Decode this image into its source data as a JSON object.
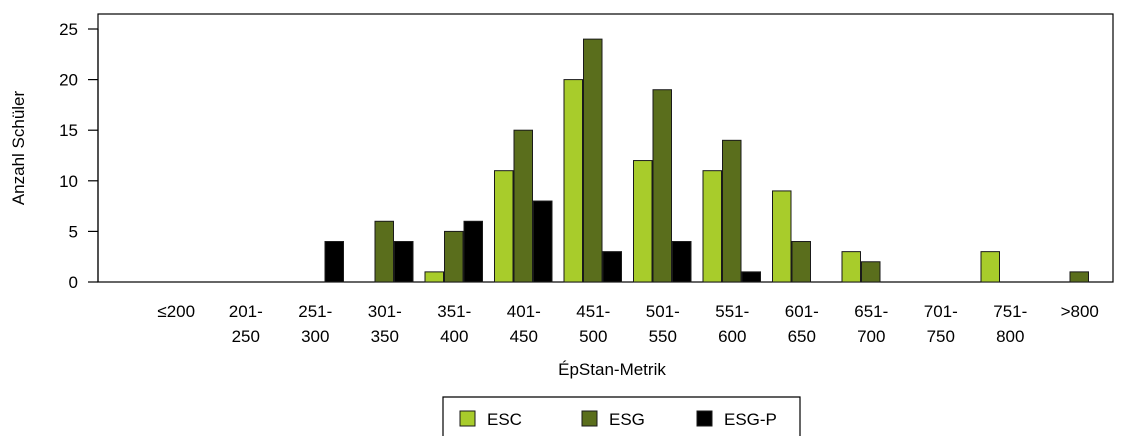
{
  "chart_data": {
    "type": "bar",
    "xlabel": "ÉpStan-Metrik",
    "ylabel": "Anzahl Schüler",
    "ylim": [
      0,
      26
    ],
    "yticks": [
      0,
      5,
      10,
      15,
      20,
      25
    ],
    "categories": [
      [
        "≤200"
      ],
      [
        "201-",
        "250"
      ],
      [
        "251-",
        "300"
      ],
      [
        "301-",
        "350"
      ],
      [
        "351-",
        "400"
      ],
      [
        "401-",
        "450"
      ],
      [
        "451-",
        "500"
      ],
      [
        "501-",
        "550"
      ],
      [
        "551-",
        "600"
      ],
      [
        "601-",
        "650"
      ],
      [
        "651-",
        "700"
      ],
      [
        "701-",
        "750"
      ],
      [
        "751-",
        "800"
      ],
      [
        ">800"
      ]
    ],
    "series": [
      {
        "name": "ESC",
        "color": "#a8cc2b",
        "values": [
          0,
          0,
          0,
          0,
          1,
          11,
          20,
          12,
          11,
          9,
          3,
          0,
          3,
          0
        ]
      },
      {
        "name": "ESG",
        "color": "#5a6e1c",
        "values": [
          0,
          0,
          0,
          6,
          5,
          15,
          24,
          19,
          14,
          4,
          2,
          0,
          0,
          1
        ]
      },
      {
        "name": "ESG-P",
        "color": "#000000",
        "values": [
          0,
          0,
          4,
          4,
          6,
          8,
          3,
          4,
          1,
          0,
          0,
          0,
          0,
          0
        ]
      }
    ],
    "grid": false,
    "legend_position": "bottom-center"
  }
}
